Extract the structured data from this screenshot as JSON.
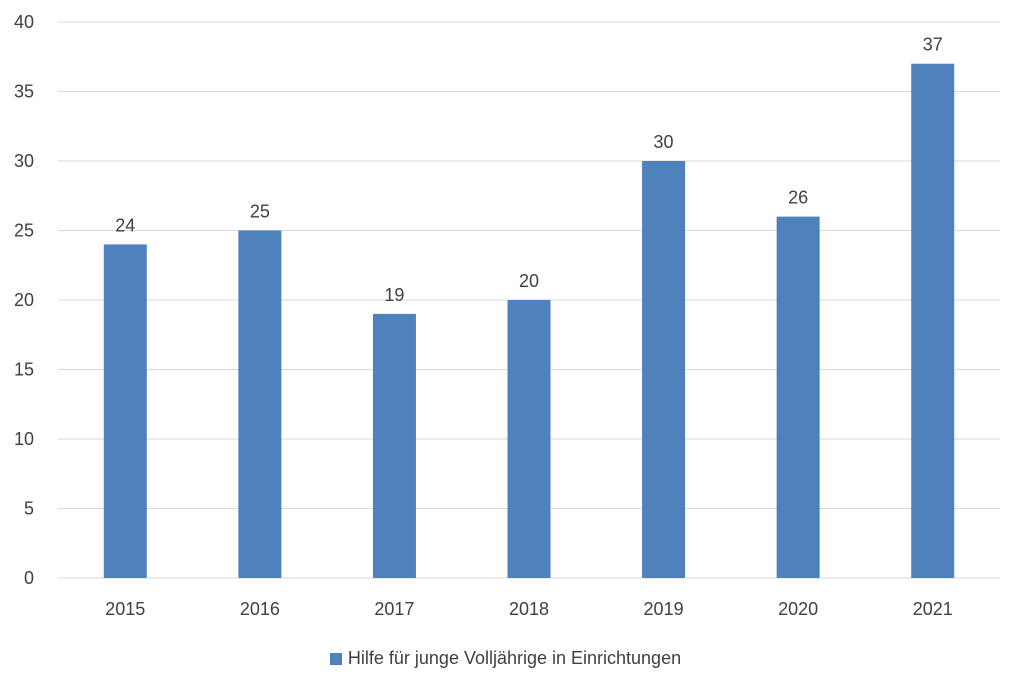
{
  "chart_data": {
    "type": "bar",
    "categories": [
      "2015",
      "2016",
      "2017",
      "2018",
      "2019",
      "2020",
      "2021"
    ],
    "series": [
      {
        "name": "Hilfe für junge Volljährige in Einrichtungen",
        "values": [
          24,
          25,
          19,
          20,
          30,
          26,
          37
        ],
        "color": "#4f81bd"
      }
    ],
    "yticks": [
      "0",
      "5",
      "10",
      "15",
      "20",
      "25",
      "30",
      "35",
      "40"
    ],
    "ylim": [
      0,
      40
    ],
    "grid": true,
    "data_labels": true,
    "legend_position": "bottom"
  }
}
